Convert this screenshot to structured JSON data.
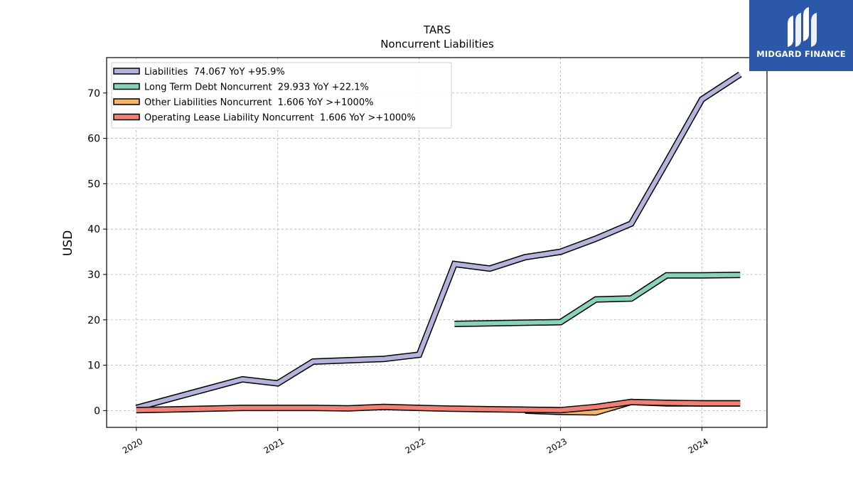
{
  "brand": {
    "name": "MIDGARD FINANCE",
    "color": "#2b58a8"
  },
  "chart_data": {
    "type": "line",
    "title": "TARS",
    "subtitle": "Noncurrent  Liabilities",
    "xlabel": "",
    "ylabel": "USD",
    "xlim": [
      2019.79,
      2024.46
    ],
    "ylim": [
      -3.7,
      77.8
    ],
    "xticks": [
      2020,
      2021,
      2022,
      2023,
      2024
    ],
    "xtick_labels": [
      "2020",
      "2021",
      "2022",
      "2023",
      "2024"
    ],
    "yticks": [
      0,
      10,
      20,
      30,
      40,
      50,
      60,
      70
    ],
    "ytick_labels": [
      "0",
      "10",
      "20",
      "30",
      "40",
      "50",
      "60",
      "70"
    ],
    "grid": true,
    "legend_position": "top-left",
    "series": [
      {
        "name": "Liabilities  74.067 YoY +95.9%",
        "color": "#b3b3dc",
        "x": [
          2020.0,
          2020.75,
          2021.0,
          2021.25,
          2021.5,
          2021.75,
          2022.0,
          2022.25,
          2022.5,
          2022.75,
          2023.0,
          2023.25,
          2023.5,
          2023.75,
          2024.0,
          2024.27
        ],
        "y": [
          0.6,
          6.9,
          6.0,
          10.8,
          11.1,
          11.4,
          12.3,
          32.3,
          31.3,
          33.8,
          35.0,
          37.9,
          41.2,
          54.8,
          68.6,
          74.1
        ]
      },
      {
        "name": "Long Term Debt Noncurrent  29.933 YoY +22.1%",
        "color": "#88d1bd",
        "x": [
          2022.25,
          2023.0,
          2023.25,
          2023.5,
          2023.75,
          2024.0,
          2024.27
        ],
        "y": [
          19.1,
          19.5,
          24.5,
          24.7,
          29.8,
          29.8,
          29.9
        ]
      },
      {
        "name": "Other Liabilities Noncurrent  1.606 YoY >+1000%",
        "color": "#f5b46a",
        "x": [
          2022.75,
          2023.0,
          2023.25,
          2023.5,
          2023.75,
          2024.0,
          2024.27
        ],
        "y": [
          0.0,
          -0.3,
          -0.4,
          1.9,
          1.6,
          1.6,
          1.6
        ]
      },
      {
        "name": "Operating Lease Liability Noncurrent  1.606 YoY >+1000%",
        "color": "#f08073",
        "x": [
          2020.0,
          2020.75,
          2021.0,
          2021.25,
          2021.5,
          2021.75,
          2022.0,
          2022.25,
          2022.5,
          2022.75,
          2023.0,
          2023.25,
          2023.5,
          2023.75,
          2024.0,
          2024.27
        ],
        "y": [
          0.1,
          0.6,
          0.6,
          0.6,
          0.5,
          0.8,
          0.6,
          0.4,
          0.3,
          0.2,
          0.1,
          0.8,
          1.9,
          1.7,
          1.6,
          1.6
        ]
      }
    ]
  }
}
